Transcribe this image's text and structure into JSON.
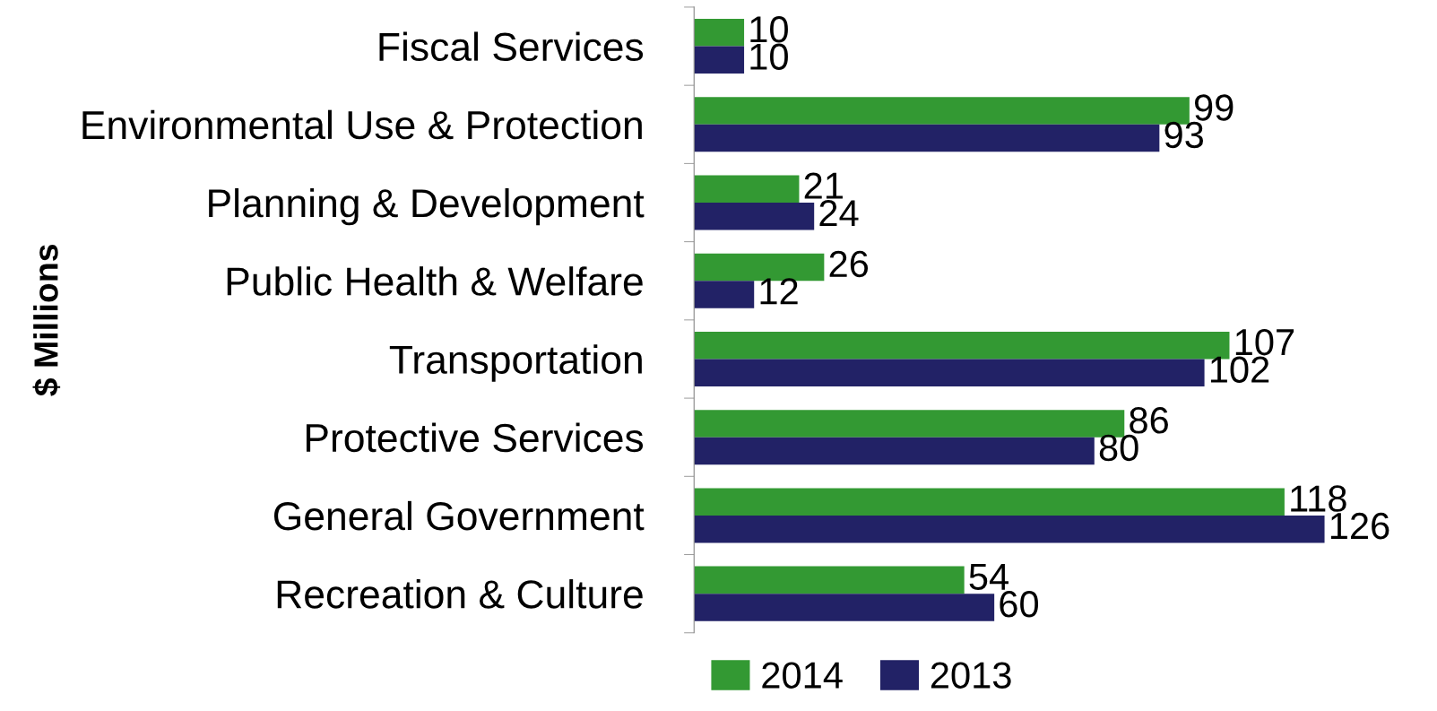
{
  "chart_data": {
    "type": "bar",
    "orientation": "horizontal",
    "ylabel": "$ Millions",
    "categories": [
      "Fiscal Services",
      "Environmental Use & Protection",
      "Planning & Development",
      "Public Health & Welfare",
      "Transportation",
      "Protective Services",
      "General Government",
      "Recreation & Culture"
    ],
    "series": [
      {
        "name": "2014",
        "color": "#339933",
        "values": [
          10,
          99,
          21,
          26,
          107,
          86,
          118,
          54
        ]
      },
      {
        "name": "2013",
        "color": "#222266",
        "values": [
          10,
          93,
          24,
          12,
          102,
          80,
          126,
          60
        ]
      }
    ],
    "data_labels": true,
    "legend": "bottom",
    "grid": false,
    "tick_labels": "y"
  }
}
